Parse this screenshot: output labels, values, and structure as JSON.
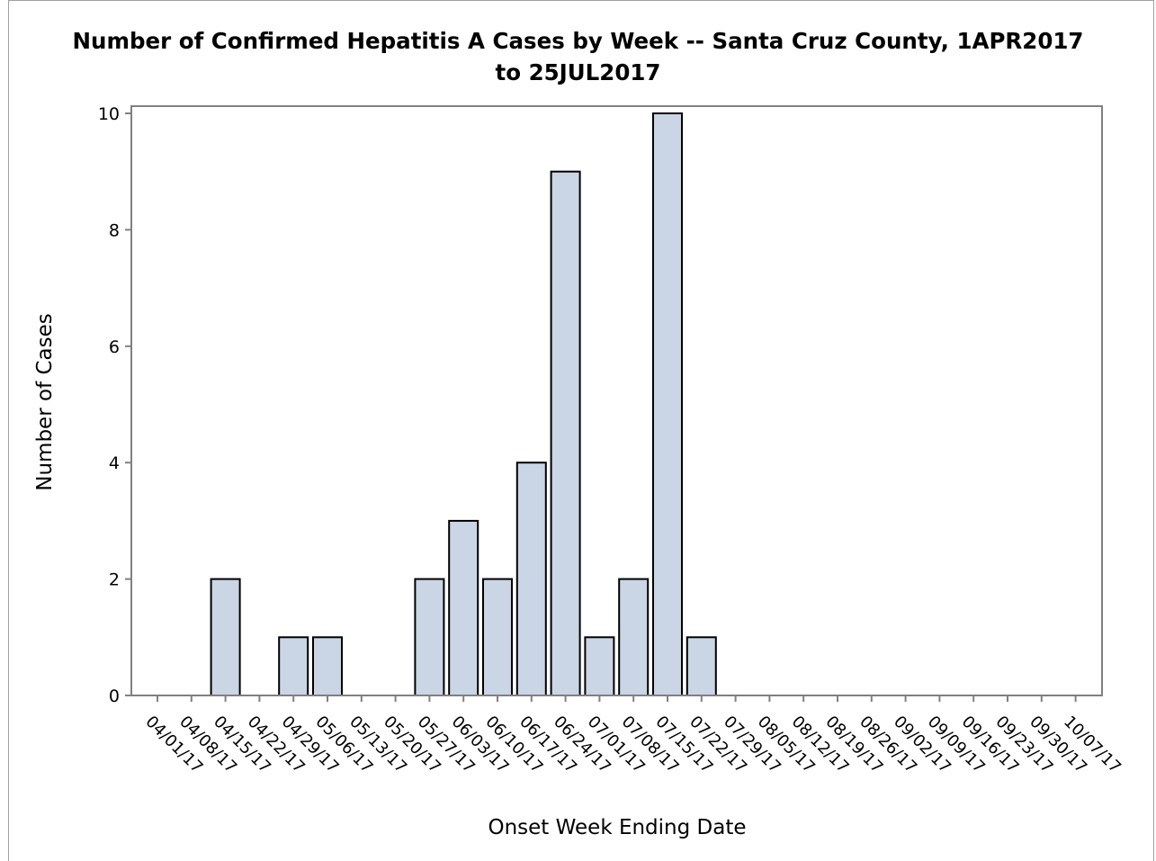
{
  "chart_data": {
    "type": "bar",
    "title": "Number of Confirmed Hepatitis A Cases by Week -- Santa Cruz County, 1APR2017",
    "title_line2": "to 25JUL2017",
    "xlabel": "Onset Week Ending Date",
    "ylabel": "Number of Cases",
    "ylim": [
      0,
      10
    ],
    "yticks": [
      0,
      2,
      4,
      6,
      8,
      10
    ],
    "grid": false,
    "categories": [
      "04/01/17",
      "04/08/17",
      "04/15/17",
      "04/22/17",
      "04/29/17",
      "05/06/17",
      "05/13/17",
      "05/20/17",
      "05/27/17",
      "06/03/17",
      "06/10/17",
      "06/17/17",
      "06/24/17",
      "07/01/17",
      "07/08/17",
      "07/15/17",
      "07/22/17",
      "07/29/17",
      "08/05/17",
      "08/12/17",
      "08/19/17",
      "08/26/17",
      "09/02/17",
      "09/09/17",
      "09/16/17",
      "09/23/17",
      "09/30/17",
      "10/07/17"
    ],
    "values": [
      0,
      0,
      2,
      0,
      1,
      1,
      0,
      0,
      2,
      3,
      2,
      4,
      9,
      1,
      2,
      10,
      1,
      0,
      0,
      0,
      0,
      0,
      0,
      0,
      0,
      0,
      0,
      0
    ],
    "colors": {
      "bar_fill": "#cad5e5",
      "bar_stroke": "#000000",
      "axis": "#808080"
    }
  }
}
